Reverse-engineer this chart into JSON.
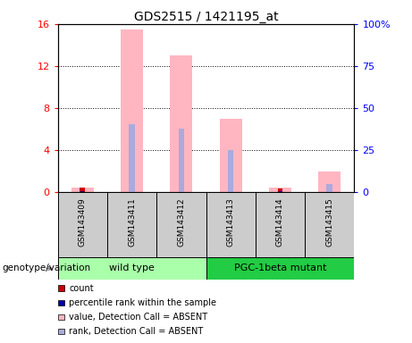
{
  "title": "GDS2515 / 1421195_at",
  "samples": [
    "GSM143409",
    "GSM143411",
    "GSM143412",
    "GSM143413",
    "GSM143414",
    "GSM143415"
  ],
  "ylim_left": [
    0,
    16
  ],
  "ylim_right": [
    0,
    100
  ],
  "yticks_left": [
    0,
    4,
    8,
    12,
    16
  ],
  "yticks_right": [
    0,
    25,
    50,
    75,
    100
  ],
  "ytick_labels_right": [
    "0",
    "25",
    "50",
    "75",
    "100%"
  ],
  "pink_bars": [
    0.4,
    15.5,
    13.0,
    7.0,
    0.4,
    2.0
  ],
  "blue_rank_bars": [
    0.05,
    6.5,
    6.0,
    4.0,
    0.15,
    0.8
  ],
  "red_count": [
    0.4,
    0.0,
    0.0,
    0.0,
    0.35,
    0.0
  ],
  "blue_count": [
    0.05,
    0.0,
    0.0,
    0.0,
    0.1,
    0.0
  ],
  "colors": {
    "pink": "#FFB6C1",
    "light_blue": "#AAAADD",
    "red": "#CC0000",
    "blue": "#0000AA"
  },
  "group_wt_color": "#AAFFAA",
  "group_pgc_color": "#22CC44",
  "legend_items": [
    {
      "color": "#CC0000",
      "label": "count"
    },
    {
      "color": "#0000AA",
      "label": "percentile rank within the sample"
    },
    {
      "color": "#FFB6C1",
      "label": "value, Detection Call = ABSENT"
    },
    {
      "color": "#AAAADD",
      "label": "rank, Detection Call = ABSENT"
    }
  ],
  "cell_bg": "#cccccc",
  "background_color": "#ffffff"
}
